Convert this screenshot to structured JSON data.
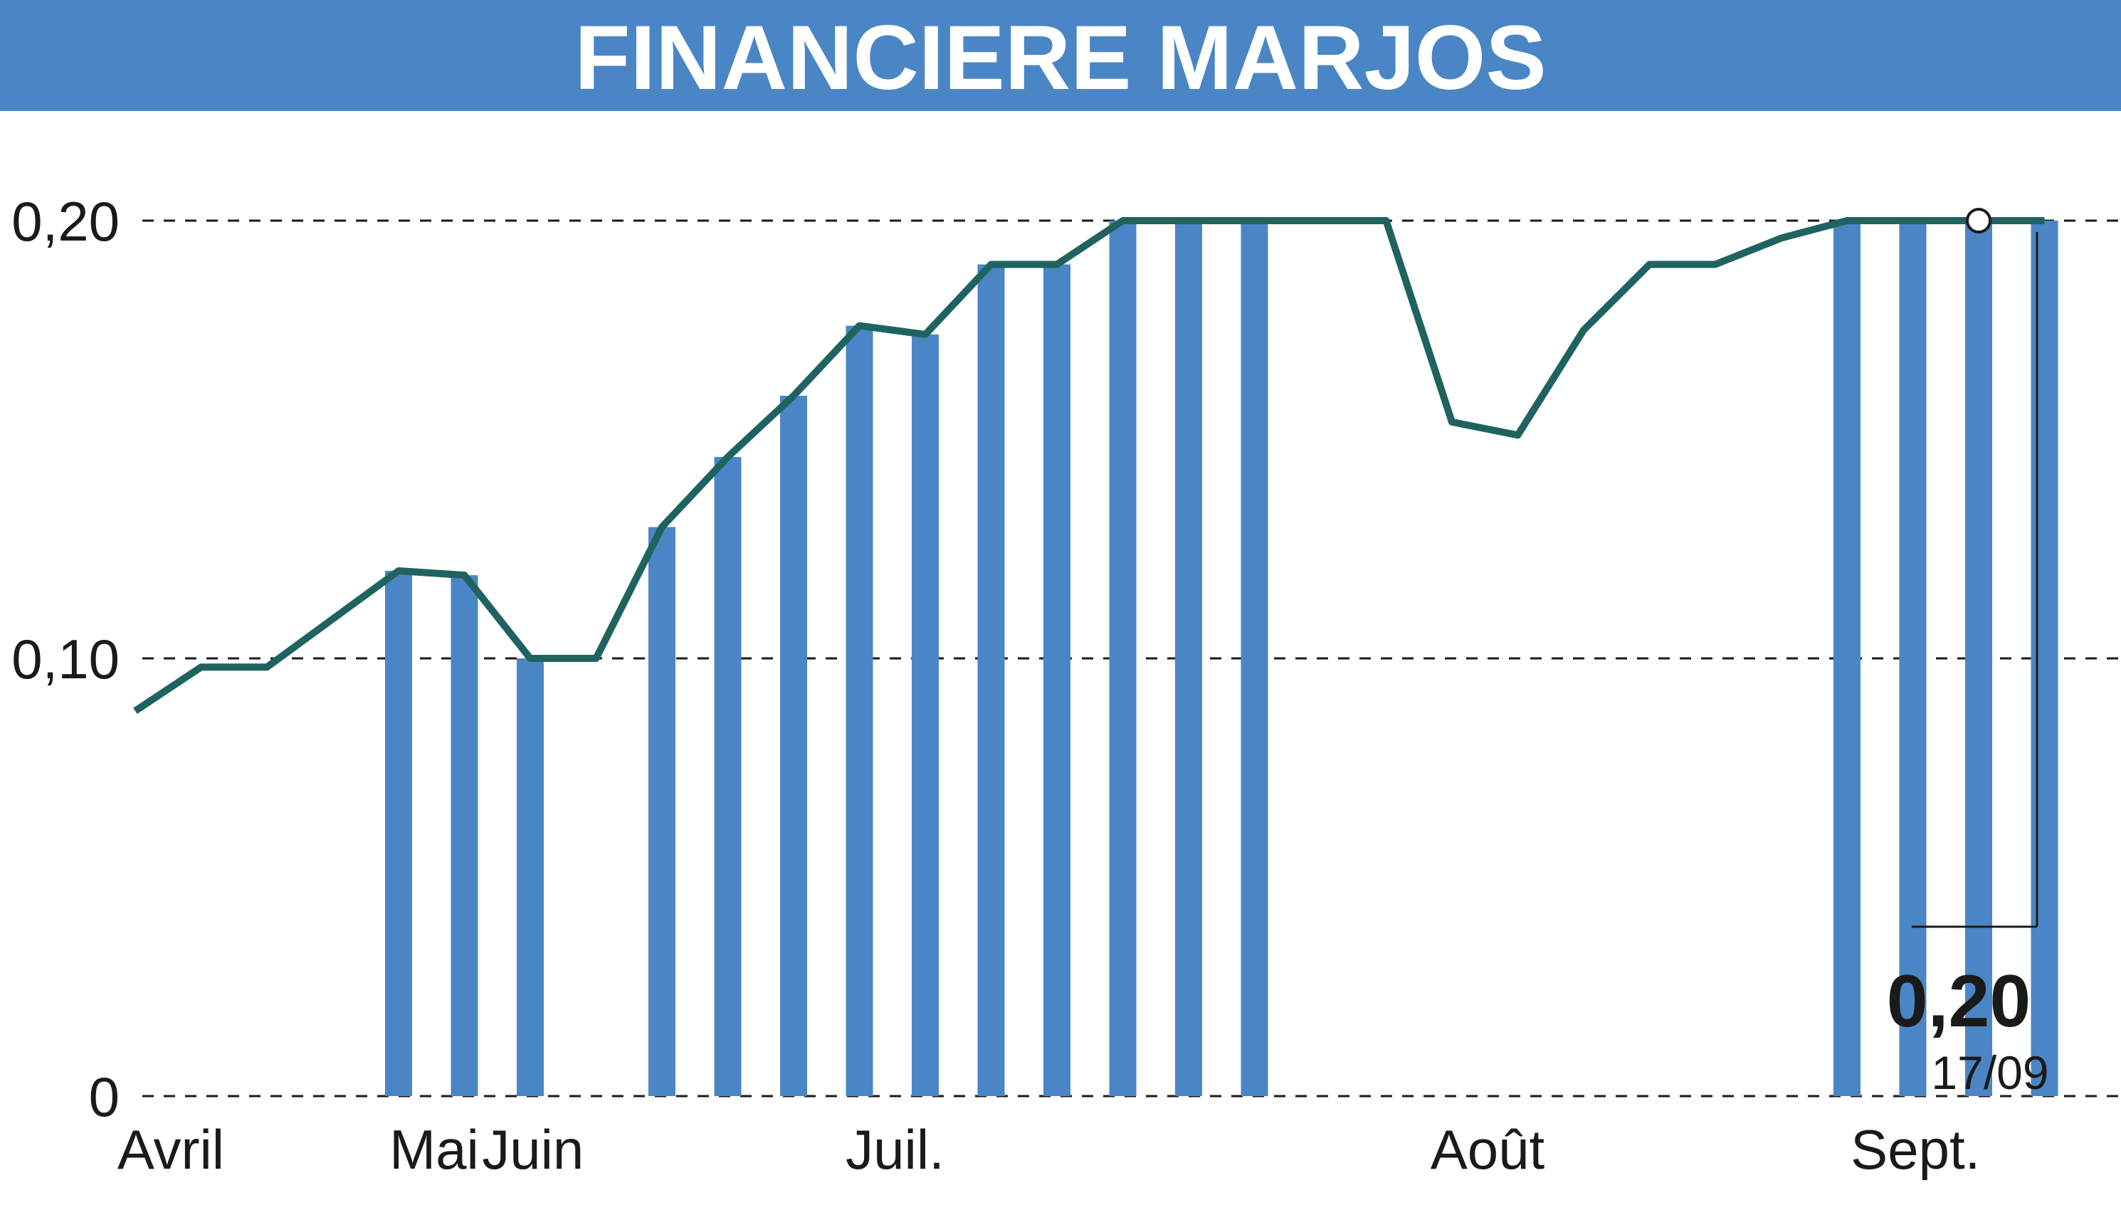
{
  "header": {
    "title": "FINANCIERE MARJOS",
    "color": "#4a86c5"
  },
  "chart_data": {
    "type": "line",
    "title": "FINANCIERE MARJOS",
    "xlabel": "",
    "ylabel": "",
    "ylim": [
      0,
      0.2
    ],
    "yticks": [
      {
        "value": 0,
        "label": "0"
      },
      {
        "value": 0.1,
        "label": "0,10"
      },
      {
        "value": 0.2,
        "label": "0,20"
      }
    ],
    "xticks": [
      {
        "x": 0,
        "label": "Avril"
      },
      {
        "x": 4,
        "label": "Mai"
      },
      {
        "x": 5.5,
        "label": "Juin"
      },
      {
        "x": 11,
        "label": "Juil."
      },
      {
        "x": 20,
        "label": "Août"
      },
      {
        "x": 26.5,
        "label": "Sept."
      }
    ],
    "grid": true,
    "series": [
      {
        "type": "line",
        "color": "#1f6360",
        "x": [
          0,
          1,
          2,
          3,
          4,
          5,
          6,
          7,
          8,
          9,
          10,
          11,
          12,
          13,
          14,
          15,
          16,
          17,
          18,
          19,
          20,
          21,
          22,
          23,
          24,
          25,
          26,
          27,
          28,
          29
        ],
        "values": [
          0.088,
          0.098,
          0.098,
          0.109,
          0.12,
          0.119,
          0.1,
          0.1,
          0.13,
          0.146,
          0.16,
          0.176,
          0.174,
          0.19,
          0.19,
          0.2,
          0.2,
          0.2,
          0.2,
          0.2,
          0.154,
          0.151,
          0.175,
          0.19,
          0.19,
          0.196,
          0.2,
          0.2,
          0.2,
          0.2
        ]
      },
      {
        "type": "bar",
        "color": "#4a86c5",
        "x": [
          4,
          5,
          6,
          8,
          9,
          10,
          11,
          12,
          13,
          14,
          15,
          16,
          17,
          26,
          27,
          28,
          29
        ],
        "values": [
          0.12,
          0.119,
          0.1,
          0.13,
          0.146,
          0.16,
          0.176,
          0.174,
          0.19,
          0.19,
          0.2,
          0.2,
          0.2,
          0.2,
          0.2,
          0.2,
          0.2
        ],
        "note": "volume bars"
      }
    ],
    "last": {
      "value_label": "0,20",
      "date_label": "17/09",
      "value": 0.2
    }
  }
}
